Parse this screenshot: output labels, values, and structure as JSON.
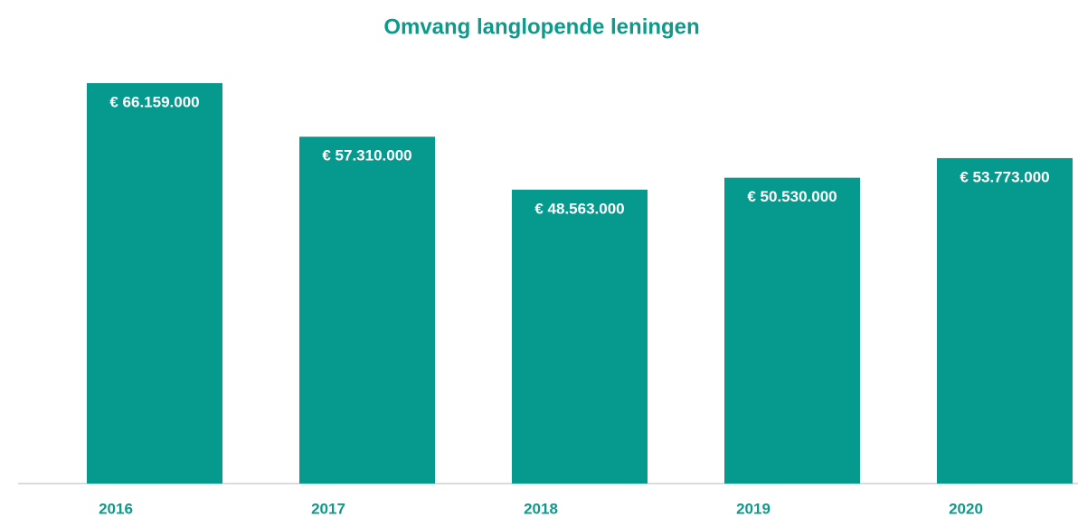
{
  "chart_data": {
    "type": "bar",
    "title": "Omvang langlopende leningen",
    "categories": [
      "2016",
      "2017",
      "2018",
      "2019",
      "2020"
    ],
    "values": [
      66159000,
      57310000,
      48563000,
      50530000,
      53773000
    ],
    "value_labels": [
      "€ 66.159.000",
      "€ 57.310.000",
      "€ 48.563.000",
      "€ 50.530.000",
      "€ 53.773.000"
    ],
    "color": "#069a8e"
  }
}
